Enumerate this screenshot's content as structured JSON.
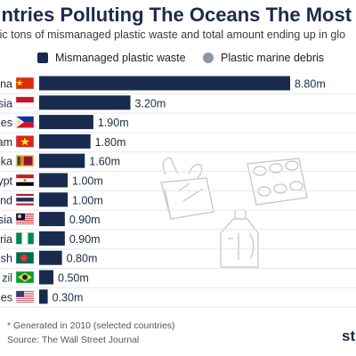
{
  "title": "untries Polluting The Oceans The Most",
  "subtitle": "tric tons of mismanaged plastic waste and total amount ending up in glo",
  "legend": {
    "item1": "Mismanaged plastic waste",
    "item2": "Plastic marine debris"
  },
  "footer": {
    "note": "* Generated in 2010 (selected countries)",
    "source": "Source: The Wall Street Journal",
    "brand": "st"
  },
  "colors": {
    "bar": "#182b4e",
    "debris": "#8c97a3"
  },
  "chart_data": {
    "type": "bar",
    "orientation": "horizontal",
    "categories": [
      "na",
      "sia",
      "nes",
      "am",
      "ka",
      "ypt",
      "and",
      "sia",
      "ria",
      "sh",
      "zil",
      "es"
    ],
    "values": [
      8.8,
      3.2,
      1.9,
      1.8,
      1.6,
      1.0,
      1.0,
      0.9,
      0.9,
      0.8,
      0.5,
      0.3
    ],
    "labels": [
      "8.80m",
      "3.20m",
      "1.90m",
      "1.80m",
      "1.60m",
      "1.00m",
      "1.00m",
      "0.90m",
      "0.90m",
      "0.80m",
      "0.50m",
      "0.30m"
    ],
    "flags": [
      "china",
      "indonesia",
      "philippines",
      "vietnam",
      "sri-lanka",
      "egypt",
      "thailand",
      "malaysia",
      "nigeria",
      "bangladesh",
      "brazil",
      "united-states"
    ],
    "series": [
      {
        "name": "Mismanaged plastic waste",
        "values": [
          8.8,
          3.2,
          1.9,
          1.8,
          1.6,
          1.0,
          1.0,
          0.9,
          0.9,
          0.8,
          0.5,
          0.3
        ]
      }
    ],
    "xlim": [
      0,
      8.8
    ]
  }
}
